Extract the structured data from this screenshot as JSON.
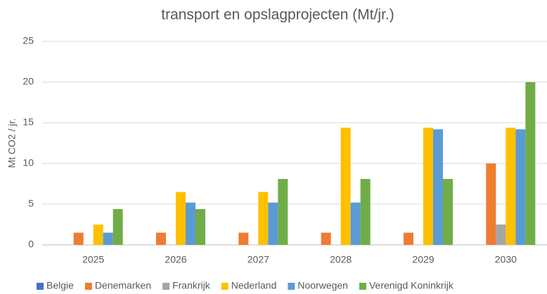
{
  "chart_data": {
    "type": "bar",
    "title": "transport en opslagprojecten  (Mt/jr.)",
    "y_label": "Mt CO2 / jr.",
    "categories": [
      "2025",
      "2026",
      "2027",
      "2028",
      "2029",
      "2030"
    ],
    "series": [
      {
        "name": "Belgie",
        "color": "#4472c4",
        "values": [
          0,
          0,
          0,
          0,
          0,
          0
        ]
      },
      {
        "name": "Denemarken",
        "color": "#ed7d31",
        "values": [
          1.5,
          1.5,
          1.5,
          1.5,
          1.5,
          10
        ]
      },
      {
        "name": "Frankrijk",
        "color": "#a5a5a5",
        "values": [
          0,
          0,
          0,
          0,
          0,
          2.5
        ]
      },
      {
        "name": "Nederland",
        "color": "#ffc000",
        "values": [
          2.5,
          6.5,
          6.5,
          14.4,
          14.4,
          14.4
        ]
      },
      {
        "name": "Noorwegen",
        "color": "#5b9bd5",
        "values": [
          1.5,
          5.2,
          5.2,
          5.2,
          14.2,
          14.2
        ]
      },
      {
        "name": "Verenigd Koninkrijk",
        "color": "#70ad47",
        "values": [
          4.4,
          4.4,
          8.1,
          8.1,
          8.1,
          20
        ]
      }
    ],
    "ylim": [
      0,
      25
    ],
    "yticks": [
      0,
      5,
      10,
      15,
      20,
      25
    ],
    "grid": true,
    "legend": "bottom"
  }
}
